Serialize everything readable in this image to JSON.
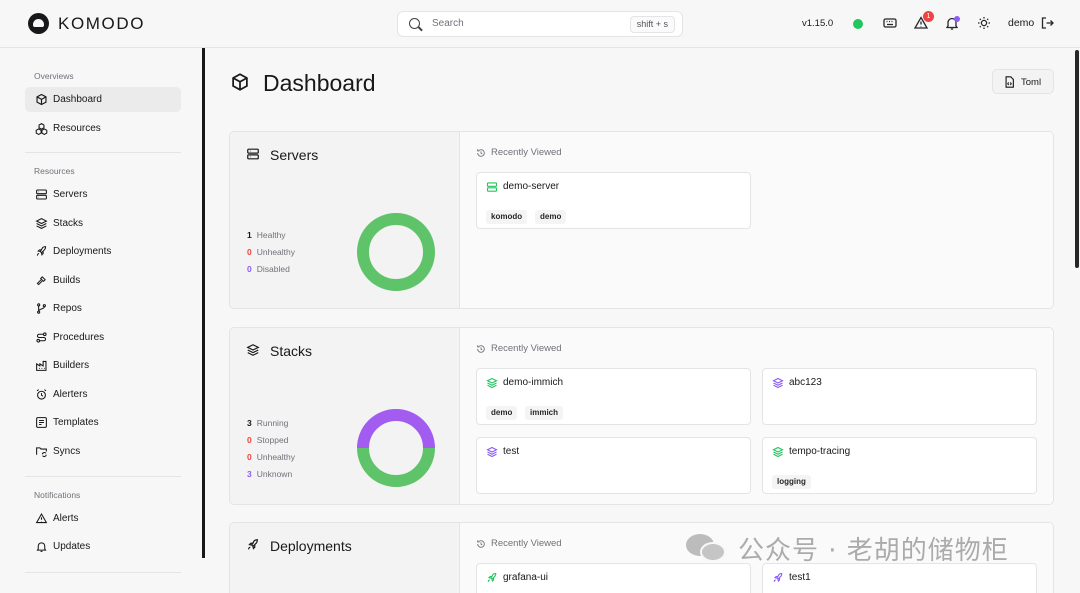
{
  "header": {
    "logo_text": "KOMODO",
    "search_placeholder": "Search",
    "search_shortcut": "shift + s",
    "version": "v1.15.0",
    "status_color": "#22c55e",
    "alert_count": "1",
    "user": "demo",
    "icons": [
      "keyboard-icon",
      "alert-triangle-icon",
      "bell-icon",
      "sun-icon",
      "logout-icon"
    ]
  },
  "sidebar": {
    "sections": [
      {
        "title": "Overviews",
        "items": [
          {
            "label": "Dashboard",
            "icon": "box-icon",
            "active": true
          },
          {
            "label": "Resources",
            "icon": "boxes-icon"
          }
        ]
      },
      {
        "title": "Resources",
        "items": [
          {
            "label": "Servers",
            "icon": "server-icon"
          },
          {
            "label": "Stacks",
            "icon": "layers-icon"
          },
          {
            "label": "Deployments",
            "icon": "rocket-icon"
          },
          {
            "label": "Builds",
            "icon": "hammer-icon"
          },
          {
            "label": "Repos",
            "icon": "git-branch-icon"
          },
          {
            "label": "Procedures",
            "icon": "route-icon"
          },
          {
            "label": "Builders",
            "icon": "factory-icon"
          },
          {
            "label": "Alerters",
            "icon": "alarm-clock-icon"
          },
          {
            "label": "Templates",
            "icon": "template-icon"
          },
          {
            "label": "Syncs",
            "icon": "folder-sync-icon"
          }
        ]
      },
      {
        "title": "Notifications",
        "items": [
          {
            "label": "Alerts",
            "icon": "alert-triangle-icon"
          },
          {
            "label": "Updates",
            "icon": "bell-icon"
          }
        ]
      }
    ]
  },
  "main": {
    "title": "Dashboard",
    "toml_button": "Toml",
    "recently_viewed": "Recently Viewed",
    "sections": {
      "servers": {
        "title": "Servers",
        "stats": [
          {
            "count": "1",
            "label": "Healthy",
            "color": "#22c55e"
          },
          {
            "count": "0",
            "label": "Unhealthy",
            "color": "#ef4444"
          },
          {
            "count": "0",
            "label": "Disabled",
            "color": "#8b5cf6"
          }
        ],
        "donut": {
          "healthy": 1,
          "unhealthy": 0,
          "disabled": 0
        },
        "cards": [
          {
            "name": "demo-server",
            "tags": [
              "komodo",
              "demo"
            ],
            "icon_color": "#22c55e"
          }
        ]
      },
      "stacks": {
        "title": "Stacks",
        "stats": [
          {
            "count": "3",
            "label": "Running",
            "color": "#22c55e"
          },
          {
            "count": "0",
            "label": "Stopped",
            "color": "#ef4444"
          },
          {
            "count": "0",
            "label": "Unhealthy",
            "color": "#ef4444"
          },
          {
            "count": "3",
            "label": "Unknown",
            "color": "#8b5cf6"
          }
        ],
        "donut": {
          "running": 3,
          "unknown": 3
        },
        "cards": [
          {
            "name": "demo-immich",
            "tags": [
              "demo",
              "immich"
            ],
            "icon_color": "#22c55e"
          },
          {
            "name": "abc123",
            "tags": [],
            "icon_color": "#8b5cf6"
          },
          {
            "name": "test",
            "tags": [],
            "icon_color": "#8b5cf6"
          },
          {
            "name": "tempo-tracing",
            "tags": [
              "logging"
            ],
            "icon_color": "#22c55e"
          }
        ]
      },
      "deployments": {
        "title": "Deployments",
        "cards": [
          {
            "name": "grafana-ui",
            "tags": [],
            "icon_color": "#22c55e"
          },
          {
            "name": "test1",
            "tags": [],
            "icon_color": "#8b5cf6"
          }
        ]
      }
    }
  },
  "watermark": {
    "text": "公众号 · 老胡的储物柜"
  }
}
